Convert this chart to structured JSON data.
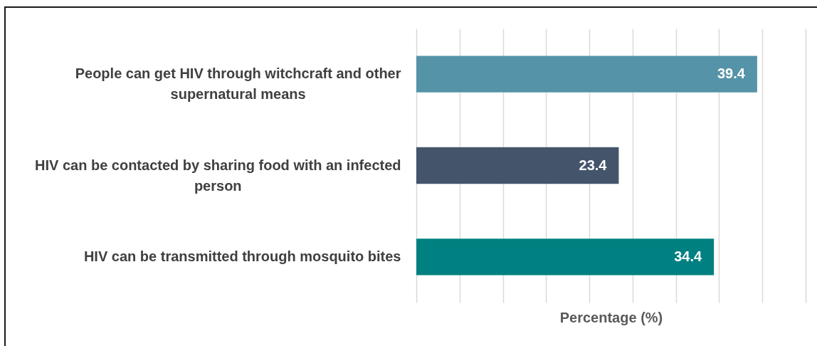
{
  "chart_data": {
    "type": "bar",
    "orientation": "horizontal",
    "categories": [
      "People can get HIV through witchcraft and other supernatural means",
      "HIV can be contacted by sharing food with an infected person",
      "HIV can be transmitted through mosquito bites"
    ],
    "values": [
      39.4,
      23.4,
      34.4
    ],
    "colors": [
      "#5593a8",
      "#44546a",
      "#008080"
    ],
    "xlabel": "Percentage (%)",
    "xlim": [
      0,
      45
    ],
    "xticks": [
      {
        "value": 0,
        "label": null
      },
      {
        "value": 5,
        "label": null
      },
      {
        "value": 10,
        "label": null
      },
      {
        "value": 15,
        "label": null
      },
      {
        "value": 20,
        "label": null
      },
      {
        "value": 25,
        "label": null
      },
      {
        "value": 30,
        "label": null
      },
      {
        "value": 35,
        "label": null
      },
      {
        "value": 40,
        "label": null
      },
      {
        "value": 45,
        "label": null
      }
    ],
    "grid": "x",
    "data_labels": true,
    "tick_labels": "y"
  }
}
